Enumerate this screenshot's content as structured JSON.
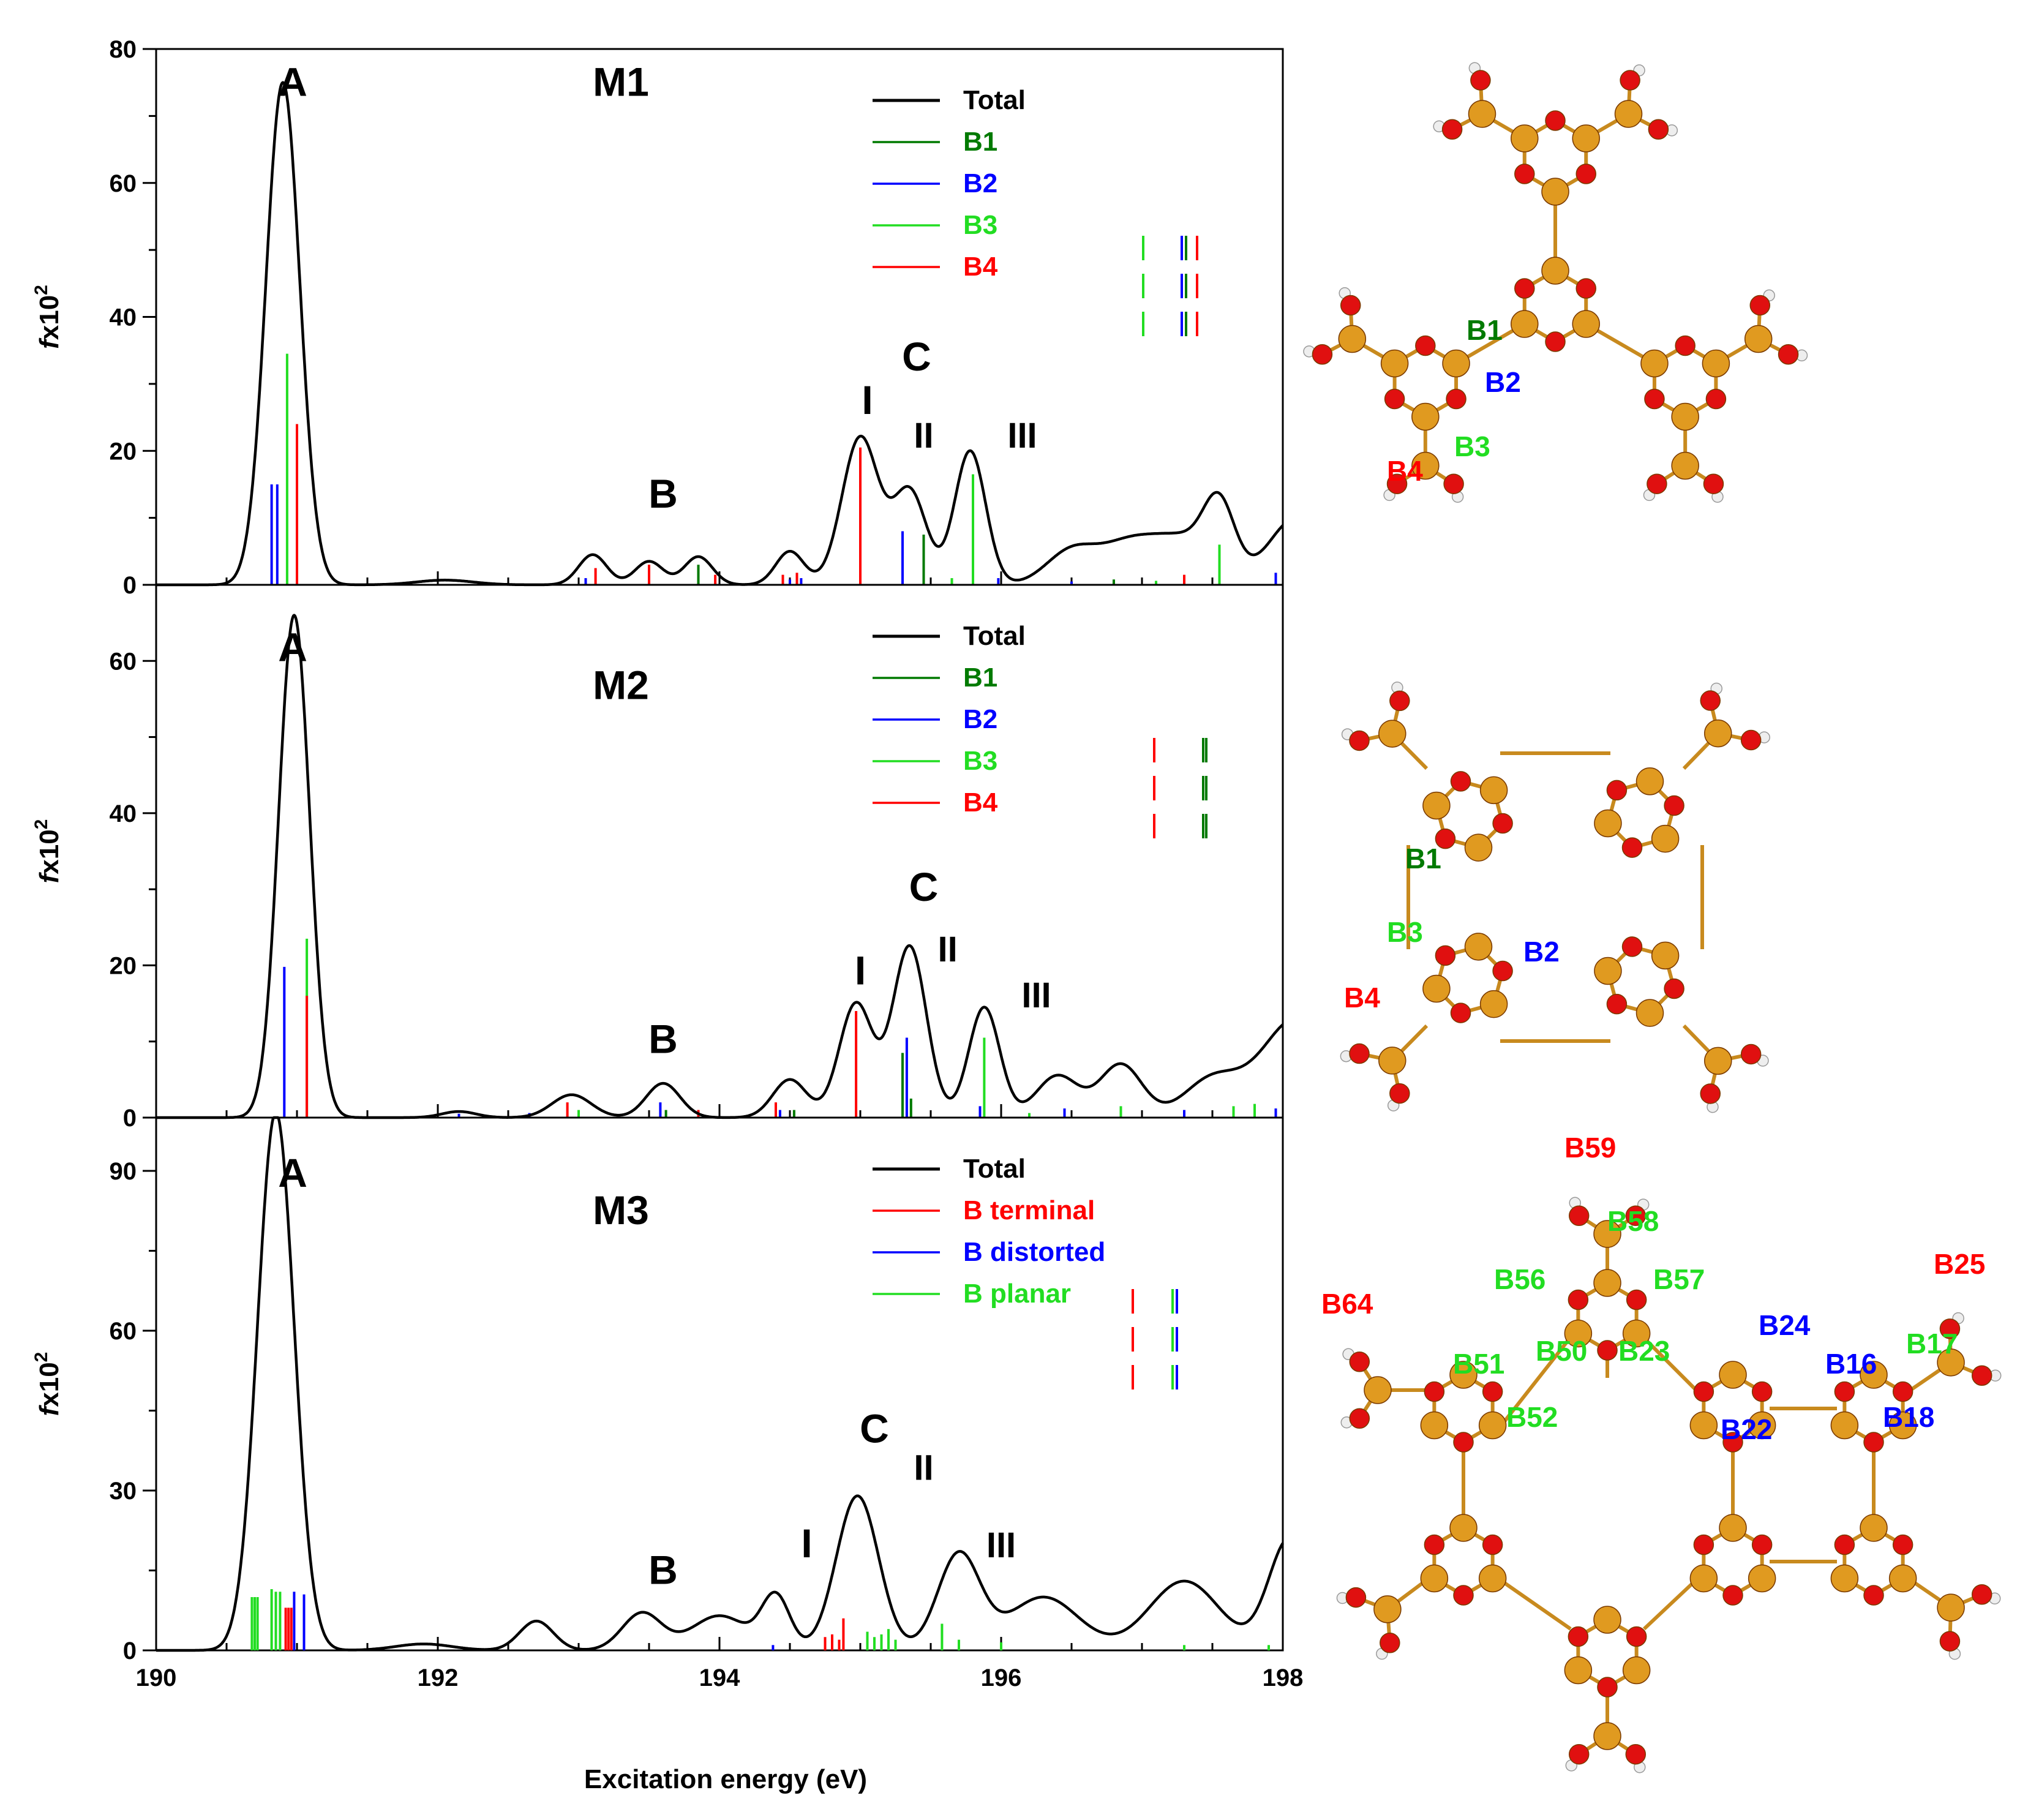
{
  "colors": {
    "B1": "#007a00",
    "B2": "#0000ff",
    "B3": "#22dd22",
    "B4": "#ff0000",
    "total": "#000000",
    "atom_B": "#e09a20",
    "atom_O": "#e01010",
    "atom_H": "#eeeeee"
  },
  "xlabel": "Excitation energy (eV)",
  "chart_data": [
    {
      "type": "line",
      "id": "M1",
      "title": "M1",
      "xlabel": "Excitation energy (eV)",
      "ylabel_main": "f",
      "ylabel_rest": "x10",
      "ylabel_sup": "2",
      "xlim": [
        190,
        198
      ],
      "ylim": [
        0,
        80
      ],
      "xticks": [
        190,
        192,
        194,
        196,
        198
      ],
      "yticks": [
        0,
        20,
        40,
        60,
        80
      ],
      "peak_labels": [
        {
          "text": "A",
          "x": 190.97,
          "y": 73
        },
        {
          "text": "M1",
          "x": 193.3,
          "y": 73
        },
        {
          "text": "C",
          "x": 195.4,
          "y": 32
        },
        {
          "text": "I",
          "x": 195.05,
          "y": 25.5
        },
        {
          "text": "II",
          "x": 195.45,
          "y": 20.5
        },
        {
          "text": "III",
          "x": 196.15,
          "y": 20.5
        },
        {
          "text": "B",
          "x": 193.6,
          "y": 11.5
        }
      ],
      "legend": [
        {
          "label": "Total",
          "series": "total"
        },
        {
          "label": "B1",
          "series": "B1"
        },
        {
          "label": "B2",
          "series": "B2"
        },
        {
          "label": "B3",
          "series": "B3"
        },
        {
          "label": "B4",
          "series": "B4"
        }
      ],
      "total_peaks": [
        {
          "x": 190.9,
          "h": 75,
          "w": 0.12
        },
        {
          "x": 192.05,
          "h": 0.7,
          "w": 0.2
        },
        {
          "x": 193.1,
          "h": 4.5,
          "w": 0.1
        },
        {
          "x": 193.5,
          "h": 3.5,
          "w": 0.1
        },
        {
          "x": 193.85,
          "h": 4.2,
          "w": 0.1
        },
        {
          "x": 194.5,
          "h": 5,
          "w": 0.1
        },
        {
          "x": 195.0,
          "h": 22,
          "w": 0.13
        },
        {
          "x": 195.35,
          "h": 14,
          "w": 0.12
        },
        {
          "x": 195.78,
          "h": 20,
          "w": 0.11
        },
        {
          "x": 196.5,
          "h": 5,
          "w": 0.18
        },
        {
          "x": 196.9,
          "h": 5.5,
          "w": 0.2
        },
        {
          "x": 197.3,
          "h": 6.5,
          "w": 0.22
        },
        {
          "x": 197.55,
          "h": 10,
          "w": 0.11
        },
        {
          "x": 198.1,
          "h": 10,
          "w": 0.2
        }
      ],
      "sticks": [
        {
          "x": 190.82,
          "y": 15,
          "s": "B2"
        },
        {
          "x": 190.86,
          "y": 15,
          "s": "B2"
        },
        {
          "x": 190.93,
          "y": 34.5,
          "s": "B3"
        },
        {
          "x": 191.0,
          "y": 24,
          "s": "B4"
        },
        {
          "x": 193.05,
          "y": 1,
          "s": "B2"
        },
        {
          "x": 193.12,
          "y": 2.5,
          "s": "B4"
        },
        {
          "x": 193.5,
          "y": 3,
          "s": "B4"
        },
        {
          "x": 193.85,
          "y": 3,
          "s": "B1"
        },
        {
          "x": 193.97,
          "y": 1.5,
          "s": "B4"
        },
        {
          "x": 194.45,
          "y": 1.5,
          "s": "B4"
        },
        {
          "x": 194.5,
          "y": 0.8,
          "s": "B2"
        },
        {
          "x": 194.55,
          "y": 1.8,
          "s": "B4"
        },
        {
          "x": 194.58,
          "y": 1,
          "s": "B2"
        },
        {
          "x": 195.0,
          "y": 20.5,
          "s": "B4"
        },
        {
          "x": 195.3,
          "y": 8,
          "s": "B2"
        },
        {
          "x": 195.45,
          "y": 7.5,
          "s": "B1"
        },
        {
          "x": 195.65,
          "y": 1,
          "s": "B3"
        },
        {
          "x": 195.8,
          "y": 16.5,
          "s": "B3"
        },
        {
          "x": 195.98,
          "y": 1,
          "s": "B2"
        },
        {
          "x": 196.5,
          "y": 0.5,
          "s": "B2"
        },
        {
          "x": 196.8,
          "y": 0.8,
          "s": "B1"
        },
        {
          "x": 197.1,
          "y": 0.6,
          "s": "B3"
        },
        {
          "x": 197.3,
          "y": 1.5,
          "s": "B4"
        },
        {
          "x": 197.55,
          "y": 6,
          "s": "B3"
        },
        {
          "x": 197.95,
          "y": 1.8,
          "s": "B2"
        }
      ]
    },
    {
      "type": "line",
      "id": "M2",
      "title": "M2",
      "xlabel": "Excitation energy (eV)",
      "ylabel_main": "f",
      "ylabel_rest": "x10",
      "ylabel_sup": "2",
      "xlim": [
        190,
        198
      ],
      "ylim": [
        0,
        70
      ],
      "xticks": [
        190,
        192,
        194,
        196,
        198
      ],
      "yticks": [
        0,
        20,
        40,
        60
      ],
      "peak_labels": [
        {
          "text": "A",
          "x": 190.97,
          "y": 60
        },
        {
          "text": "M2",
          "x": 193.3,
          "y": 55
        },
        {
          "text": "C",
          "x": 195.45,
          "y": 28.5
        },
        {
          "text": "I",
          "x": 195.0,
          "y": 17.5
        },
        {
          "text": "II",
          "x": 195.62,
          "y": 20.5
        },
        {
          "text": "III",
          "x": 196.25,
          "y": 14.5
        },
        {
          "text": "B",
          "x": 193.6,
          "y": 8.5
        }
      ],
      "legend": [
        {
          "label": "Total",
          "series": "total"
        },
        {
          "label": "B1",
          "series": "B1"
        },
        {
          "label": "B2",
          "series": "B2"
        },
        {
          "label": "B3",
          "series": "B3"
        },
        {
          "label": "B4",
          "series": "B4"
        }
      ],
      "total_peaks": [
        {
          "x": 190.98,
          "h": 66,
          "w": 0.11
        },
        {
          "x": 192.15,
          "h": 0.8,
          "w": 0.12
        },
        {
          "x": 192.95,
          "h": 3,
          "w": 0.14
        },
        {
          "x": 193.6,
          "h": 4.5,
          "w": 0.12
        },
        {
          "x": 194.5,
          "h": 5,
          "w": 0.12
        },
        {
          "x": 194.97,
          "h": 15,
          "w": 0.12
        },
        {
          "x": 195.35,
          "h": 22.5,
          "w": 0.12
        },
        {
          "x": 195.88,
          "h": 14.5,
          "w": 0.11
        },
        {
          "x": 196.4,
          "h": 5.5,
          "w": 0.15
        },
        {
          "x": 196.85,
          "h": 7,
          "w": 0.15
        },
        {
          "x": 197.5,
          "h": 5,
          "w": 0.2
        },
        {
          "x": 198.1,
          "h": 13,
          "w": 0.25
        }
      ],
      "sticks": [
        {
          "x": 190.91,
          "y": 19.8,
          "s": "B2"
        },
        {
          "x": 191.07,
          "y": 23.5,
          "s": "B3"
        },
        {
          "x": 191.07,
          "y": 16,
          "s": "B4"
        },
        {
          "x": 192.15,
          "y": 0.5,
          "s": "B2"
        },
        {
          "x": 192.65,
          "y": 0.6,
          "s": "B2"
        },
        {
          "x": 192.92,
          "y": 2,
          "s": "B4"
        },
        {
          "x": 193.0,
          "y": 1,
          "s": "B3"
        },
        {
          "x": 193.58,
          "y": 2,
          "s": "B2"
        },
        {
          "x": 193.62,
          "y": 1,
          "s": "B1"
        },
        {
          "x": 193.85,
          "y": 1,
          "s": "B4"
        },
        {
          "x": 194.4,
          "y": 2,
          "s": "B4"
        },
        {
          "x": 194.43,
          "y": 1,
          "s": "B2"
        },
        {
          "x": 194.53,
          "y": 1,
          "s": "B1"
        },
        {
          "x": 194.97,
          "y": 14,
          "s": "B4"
        },
        {
          "x": 195.3,
          "y": 8.5,
          "s": "B1"
        },
        {
          "x": 195.33,
          "y": 10.5,
          "s": "B2"
        },
        {
          "x": 195.36,
          "y": 2.5,
          "s": "B1"
        },
        {
          "x": 195.88,
          "y": 10.5,
          "s": "B3"
        },
        {
          "x": 195.85,
          "y": 1.5,
          "s": "B2"
        },
        {
          "x": 196.2,
          "y": 0.6,
          "s": "B3"
        },
        {
          "x": 196.45,
          "y": 1.2,
          "s": "B2"
        },
        {
          "x": 196.85,
          "y": 1.5,
          "s": "B3"
        },
        {
          "x": 197.3,
          "y": 1,
          "s": "B2"
        },
        {
          "x": 197.65,
          "y": 1.5,
          "s": "B3"
        },
        {
          "x": 197.8,
          "y": 1.8,
          "s": "B3"
        },
        {
          "x": 197.95,
          "y": 1.2,
          "s": "B2"
        }
      ]
    },
    {
      "type": "line",
      "id": "M3",
      "title": "M3",
      "xlabel": "Excitation energy (eV)",
      "ylabel_main": "f",
      "ylabel_rest": "x10",
      "ylabel_sup": "2",
      "xlim": [
        190,
        198
      ],
      "ylim": [
        0,
        100
      ],
      "xticks": [
        190,
        192,
        194,
        196,
        198
      ],
      "yticks": [
        0,
        30,
        60,
        90
      ],
      "peak_labels": [
        {
          "text": "A",
          "x": 190.97,
          "y": 87
        },
        {
          "text": "M3",
          "x": 193.3,
          "y": 80
        },
        {
          "text": "C",
          "x": 195.1,
          "y": 39
        },
        {
          "text": "I",
          "x": 194.62,
          "y": 17.5
        },
        {
          "text": "II",
          "x": 195.45,
          "y": 32
        },
        {
          "text": "III",
          "x": 196.0,
          "y": 17.5
        },
        {
          "text": "B",
          "x": 193.6,
          "y": 12.5
        }
      ],
      "legend": [
        {
          "label": "Total",
          "series": "total"
        },
        {
          "label": "B terminal",
          "series": "B4"
        },
        {
          "label": "B distorted",
          "series": "B2"
        },
        {
          "label": "B planar",
          "series": "B3"
        }
      ],
      "total_peaks": [
        {
          "x": 190.85,
          "h": 101,
          "w": 0.13
        },
        {
          "x": 191.9,
          "h": 1.2,
          "w": 0.2
        },
        {
          "x": 192.7,
          "h": 5.5,
          "w": 0.12
        },
        {
          "x": 193.45,
          "h": 7,
          "w": 0.14
        },
        {
          "x": 194.0,
          "h": 6.5,
          "w": 0.2
        },
        {
          "x": 194.4,
          "h": 10,
          "w": 0.1
        },
        {
          "x": 194.98,
          "h": 29,
          "w": 0.15
        },
        {
          "x": 195.7,
          "h": 18,
          "w": 0.15
        },
        {
          "x": 196.3,
          "h": 10,
          "w": 0.25
        },
        {
          "x": 197.3,
          "h": 13,
          "w": 0.25
        },
        {
          "x": 198.05,
          "h": 21,
          "w": 0.15
        }
      ],
      "sticks": [
        {
          "x": 190.68,
          "y": 10,
          "s": "B3"
        },
        {
          "x": 190.7,
          "y": 10,
          "s": "B3"
        },
        {
          "x": 190.72,
          "y": 10,
          "s": "B3"
        },
        {
          "x": 190.82,
          "y": 11.5,
          "s": "B3"
        },
        {
          "x": 190.85,
          "y": 11,
          "s": "B3"
        },
        {
          "x": 190.88,
          "y": 11,
          "s": "B3"
        },
        {
          "x": 190.92,
          "y": 8,
          "s": "B4"
        },
        {
          "x": 190.94,
          "y": 8,
          "s": "B4"
        },
        {
          "x": 190.96,
          "y": 8,
          "s": "B4"
        },
        {
          "x": 190.98,
          "y": 11,
          "s": "B2"
        },
        {
          "x": 191.05,
          "y": 10.5,
          "s": "B2"
        },
        {
          "x": 194.38,
          "y": 1,
          "s": "B2"
        },
        {
          "x": 194.75,
          "y": 2.5,
          "s": "B4"
        },
        {
          "x": 194.8,
          "y": 3,
          "s": "B4"
        },
        {
          "x": 194.85,
          "y": 2,
          "s": "B4"
        },
        {
          "x": 194.88,
          "y": 6,
          "s": "B4"
        },
        {
          "x": 195.05,
          "y": 3.5,
          "s": "B3"
        },
        {
          "x": 195.1,
          "y": 2.5,
          "s": "B3"
        },
        {
          "x": 195.15,
          "y": 3,
          "s": "B3"
        },
        {
          "x": 195.2,
          "y": 4,
          "s": "B3"
        },
        {
          "x": 195.25,
          "y": 2,
          "s": "B3"
        },
        {
          "x": 195.58,
          "y": 5,
          "s": "B3"
        },
        {
          "x": 195.7,
          "y": 2,
          "s": "B3"
        },
        {
          "x": 196.0,
          "y": 1.5,
          "s": "B3"
        },
        {
          "x": 197.3,
          "y": 1,
          "s": "B3"
        },
        {
          "x": 197.9,
          "y": 1,
          "s": "B3"
        }
      ]
    }
  ],
  "molecules": {
    "M1": {
      "labels": [
        {
          "text": "B1",
          "series": "B1"
        },
        {
          "text": "B2",
          "series": "B2"
        },
        {
          "text": "B3",
          "series": "B3"
        },
        {
          "text": "B4",
          "series": "B4"
        }
      ]
    },
    "M2": {
      "labels": [
        {
          "text": "B1",
          "series": "B1"
        },
        {
          "text": "B3",
          "series": "B3"
        },
        {
          "text": "B2",
          "series": "B2"
        },
        {
          "text": "B4",
          "series": "B4"
        }
      ]
    },
    "M3": {
      "labels": [
        {
          "text": "B59",
          "series": "B4"
        },
        {
          "text": "B58",
          "series": "B3"
        },
        {
          "text": "B56",
          "series": "B3"
        },
        {
          "text": "B57",
          "series": "B3"
        },
        {
          "text": "B25",
          "series": "B4"
        },
        {
          "text": "B64",
          "series": "B4"
        },
        {
          "text": "B24",
          "series": "B2"
        },
        {
          "text": "B51",
          "series": "B3"
        },
        {
          "text": "B50",
          "series": "B3"
        },
        {
          "text": "B23",
          "series": "B3"
        },
        {
          "text": "B16",
          "series": "B2"
        },
        {
          "text": "B17",
          "series": "B3"
        },
        {
          "text": "B52",
          "series": "B3"
        },
        {
          "text": "B22",
          "series": "B2"
        },
        {
          "text": "B18",
          "series": "B2"
        }
      ]
    }
  }
}
